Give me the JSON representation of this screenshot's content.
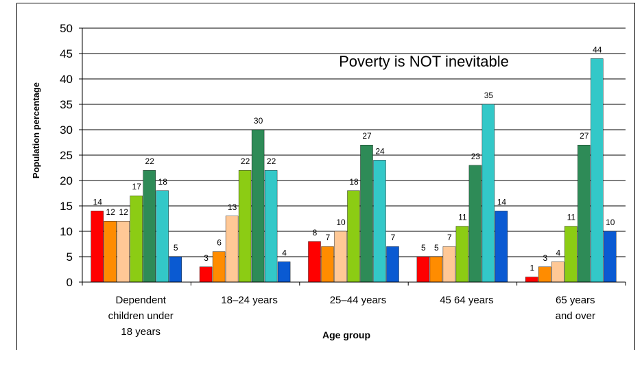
{
  "chart_data": {
    "type": "bar",
    "title": "Poverty is NOT inevitable",
    "xlabel": "Age group",
    "ylabel": "Population percentage",
    "ylim": [
      0,
      50
    ],
    "yticks": [
      0,
      5,
      10,
      15,
      20,
      25,
      30,
      35,
      40,
      45,
      50
    ],
    "grid": true,
    "legend": "none",
    "categories": [
      [
        "Dependent",
        "children under",
        "18 years"
      ],
      [
        "18–24 years"
      ],
      [
        "25–44 years"
      ],
      [
        "45  64 years"
      ],
      [
        "65 years",
        "and over"
      ]
    ],
    "series": [
      {
        "color": "#ff0000",
        "values": [
          14,
          3,
          8,
          5,
          1
        ]
      },
      {
        "color": "#ff8c00",
        "values": [
          12,
          6,
          7,
          5,
          3
        ]
      },
      {
        "color": "#ffc896",
        "values": [
          12,
          13,
          10,
          7,
          4
        ]
      },
      {
        "color": "#8ccc14",
        "values": [
          17,
          22,
          18,
          11,
          11
        ]
      },
      {
        "color": "#2e8b57",
        "values": [
          22,
          30,
          27,
          23,
          27
        ]
      },
      {
        "color": "#33c8c8",
        "values": [
          18,
          22,
          24,
          35,
          44
        ]
      },
      {
        "color": "#0a5ad2",
        "values": [
          5,
          4,
          7,
          14,
          10
        ]
      }
    ]
  }
}
